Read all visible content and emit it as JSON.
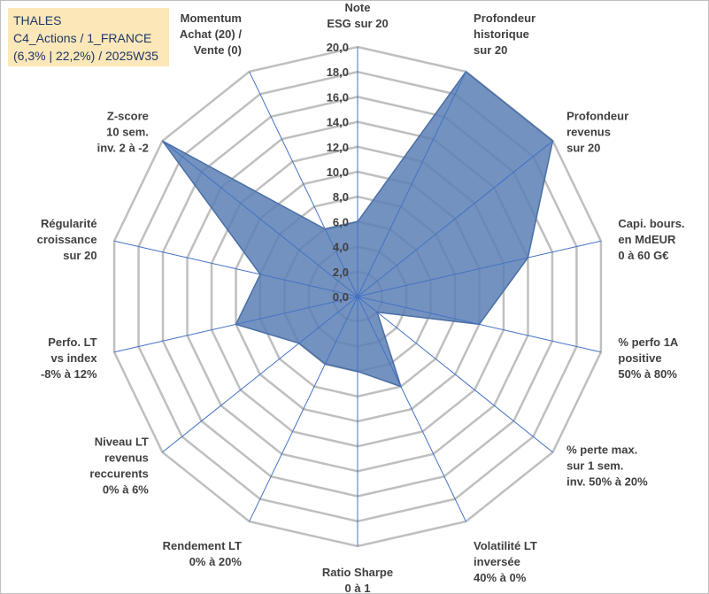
{
  "title_box": {
    "line1": "THALES",
    "line2": "C4_Actions / 1_FRANCE",
    "line3": "(6,3% | 22,2%) / 2025W35"
  },
  "chart_data": {
    "type": "radar",
    "scale_min": 0,
    "scale_max": 20,
    "tick_step": 2,
    "tick_labels": [
      "0,0",
      "2,0",
      "4,0",
      "6,0",
      "8,0",
      "10,0",
      "12,0",
      "14,0",
      "16,0",
      "18,0",
      "20,0"
    ],
    "axes": [
      [
        "Note",
        "ESG sur 20"
      ],
      [
        "Profondeur",
        "historique",
        "sur 20"
      ],
      [
        "Profondeur",
        "revenus",
        "sur 20"
      ],
      [
        "Capi. bours.",
        "en MdEUR",
        "0 à 60 G€"
      ],
      [
        "% perfo 1A",
        "positive",
        "50% à 80%"
      ],
      [
        "% perte max.",
        "sur 1 sem.",
        "inv. 50% à 20%"
      ],
      [
        "Volatilité LT",
        "inversée",
        "40% à 0%"
      ],
      [
        "Ratio Sharpe",
        "0 à 1"
      ],
      [
        "Rendement LT",
        "0% à 20%"
      ],
      [
        "Niveau LT",
        "revenus",
        "reccurents",
        "0% à 6%"
      ],
      [
        "Perfo. LT",
        "vs index",
        "-8% à 12%"
      ],
      [
        "Régularité",
        "croissance",
        "sur 20"
      ],
      [
        "Z-score",
        "10 sem.",
        "inv. 2 à -2"
      ],
      [
        "Momentum",
        "Achat (20) /",
        "Vente (0)"
      ]
    ],
    "series": [
      {
        "values": [
          6.0,
          20.0,
          20.0,
          14.0,
          10.0,
          2.0,
          8.0,
          6.0,
          6.0,
          6.0,
          10.0,
          8.0,
          20.0,
          6.0
        ]
      }
    ],
    "colors": {
      "fill": "#5b7fb5",
      "stroke": "#4a6fa5",
      "grid": "#bfbfbf",
      "spoke": "#4472c4"
    },
    "grid": true,
    "legend": "none"
  }
}
